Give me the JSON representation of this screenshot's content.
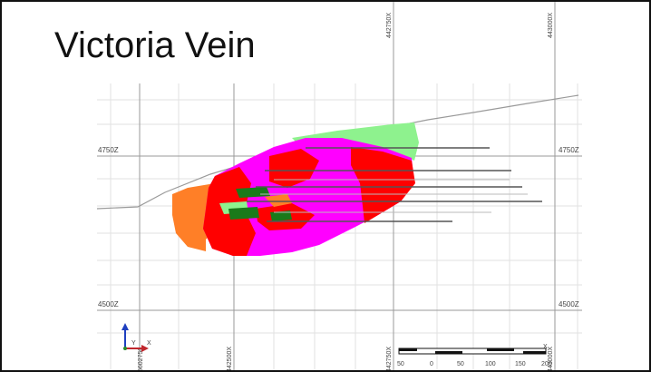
{
  "title": "Victoria Vein",
  "elevation_labels": {
    "z4750": "4750Z",
    "z4500": "4500Z"
  },
  "easting_labels": {
    "e442750_top": "442750X",
    "e443000_top": "443000X",
    "e442500_bottom": "442500X",
    "e442750_bottom": "442750X",
    "e443000_bottom": "443000X",
    "n_bottom": "6602750"
  },
  "scale_bar": {
    "ticks": [
      "50",
      "0",
      "50",
      "100",
      "150",
      "200"
    ]
  },
  "axis_indicator": {
    "x_label": "X",
    "y_label": "Y"
  },
  "colors": {
    "pink": "#ff00ff",
    "red": "#ff0000",
    "orange": "#ff7f27",
    "light_green": "#8ef28e",
    "dark_green": "#1a7a1a",
    "grid": "#d8d8d8",
    "line": "#888888"
  }
}
